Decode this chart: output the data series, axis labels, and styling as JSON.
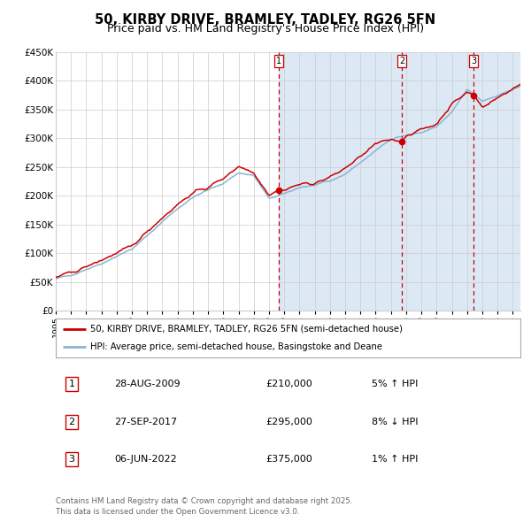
{
  "title": "50, KIRBY DRIVE, BRAMLEY, TADLEY, RG26 5FN",
  "subtitle": "Price paid vs. HM Land Registry's House Price Index (HPI)",
  "legend_line1": "50, KIRBY DRIVE, BRAMLEY, TADLEY, RG26 5FN (semi-detached house)",
  "legend_line2": "HPI: Average price, semi-detached house, Basingstoke and Deane",
  "sale_dates": [
    "28-AUG-2009",
    "27-SEP-2017",
    "06-JUN-2022"
  ],
  "sale_prices": [
    210000,
    295000,
    375000
  ],
  "sale_hpi_pct": [
    "5% ↑ HPI",
    "8% ↓ HPI",
    "1% ↑ HPI"
  ],
  "sale_years": [
    2009.66,
    2017.74,
    2022.43
  ],
  "xmin": 1995,
  "xmax": 2025.5,
  "ymin": 0,
  "ymax": 450000,
  "yticks": [
    0,
    50000,
    100000,
    150000,
    200000,
    250000,
    300000,
    350000,
    400000,
    450000
  ],
  "ytick_labels": [
    "£0",
    "£50K",
    "£100K",
    "£150K",
    "£200K",
    "£250K",
    "£300K",
    "£350K",
    "£400K",
    "£450K"
  ],
  "hpi_color": "#8ab4d4",
  "price_color": "#cc0000",
  "bg_color": "#dce9f5",
  "grid_color": "#cccccc",
  "vline_color": "#cc0000",
  "footer": "Contains HM Land Registry data © Crown copyright and database right 2025.\nThis data is licensed under the Open Government Licence v3.0.",
  "title_fontsize": 10.5,
  "subtitle_fontsize": 9
}
